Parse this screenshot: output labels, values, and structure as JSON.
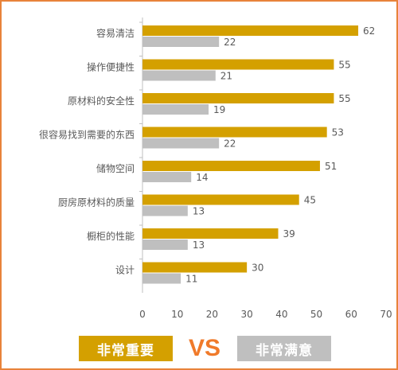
{
  "chart_data": {
    "type": "bar",
    "orientation": "horizontal",
    "categories": [
      "容易清洁",
      "操作便捷性",
      "原材料的安全性",
      "很容易找到需要的东西",
      "储物空间",
      "厨房原材料的质量",
      "橱柜的性能",
      "设计"
    ],
    "series": [
      {
        "name": "非常重要",
        "values": [
          62,
          55,
          55,
          53,
          51,
          45,
          39,
          30
        ],
        "color": "#d4a000"
      },
      {
        "name": "非常满意",
        "values": [
          22,
          21,
          19,
          22,
          14,
          13,
          13,
          11
        ],
        "color": "#bfbfbf"
      }
    ],
    "xlim": [
      0,
      70
    ],
    "x_ticks": [
      "0",
      "10",
      "20",
      "30",
      "40",
      "50",
      "60",
      "70"
    ],
    "grid": false,
    "legend_position": "bottom",
    "legend_separator": "VS"
  },
  "colors": {
    "frame": "#e8833a",
    "vs": "#f07a2a",
    "axis": "#bfbfbf",
    "label_text": "#595959"
  }
}
